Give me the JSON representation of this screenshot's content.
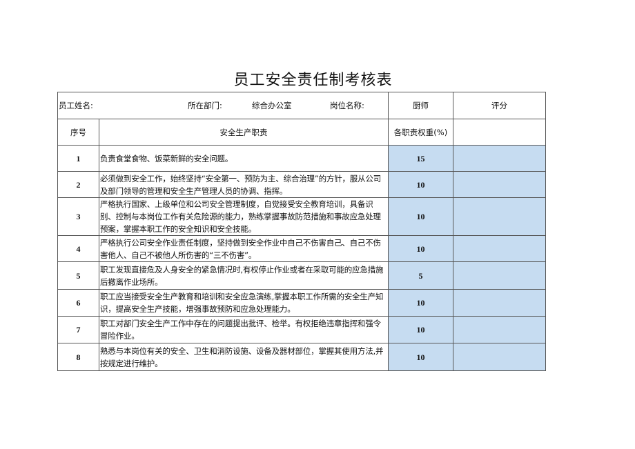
{
  "title": "员工安全责任制考核表",
  "header": {
    "employee_name_label": "员工姓名:",
    "department_label": "所在部门:",
    "department_value": "综合办公室",
    "position_label": "岗位名称:",
    "position_value": "厨师",
    "score_label": "评分"
  },
  "columns": {
    "index": "序号",
    "duty": "安全生产职责",
    "weight": "各职责权重(%)",
    "score": ""
  },
  "fill_color": "#c6dcf1",
  "rows": [
    {
      "index": "1",
      "duty": "负责食堂食物、饭菜新鲜的安全问题。",
      "weight": "15",
      "score": ""
    },
    {
      "index": "2",
      "duty": "必须做到安全工作，始终坚持“安全第一、预防为主、综合治理”的方针，服从公司及部门领导的管理和安全生产管理人员的协调、指挥。",
      "weight": "10",
      "score": ""
    },
    {
      "index": "3",
      "duty": "严格执行国家、上级单位和公司安全管理制度，自觉接受安全教育培训，具备识别、控制与本岗位工作有关危险源的能力，熟练掌握事故防范措施和事故应急处理预案，掌握本职工作的安全知识和安全技能。",
      "weight": "10",
      "score": ""
    },
    {
      "index": "4",
      "duty": "严格执行公司安全作业责任制度，坚持做到安全作业中自己不伤害自己、自己不伤害他人、自己不被他人所伤害的“三不伤害”。",
      "weight": "10",
      "score": ""
    },
    {
      "index": "5",
      "duty": "职工发现直接危及人身安全的紧急情况时,有权停止作业或者在采取可能的应急措施后撤离作业场所。",
      "weight": "5",
      "score": ""
    },
    {
      "index": "6",
      "duty": "职工应当接受安全生产教育和培训和安全应急演练,掌握本职工作所需的安全生产知识，提高安全生产技能，增强事故预防和应急处理能力。",
      "weight": "10",
      "score": ""
    },
    {
      "index": "7",
      "duty": "职工对部门安全生产工作中存在的问题提出批评、检举。有权拒绝违章指挥和强令冒险作业。",
      "weight": "10",
      "score": ""
    },
    {
      "index": "8",
      "duty": "熟悉与本岗位有关的安全、卫生和消防设施、设备及器材部位，掌握其使用方法,并按规定进行维护。",
      "weight": "10",
      "score": ""
    }
  ]
}
